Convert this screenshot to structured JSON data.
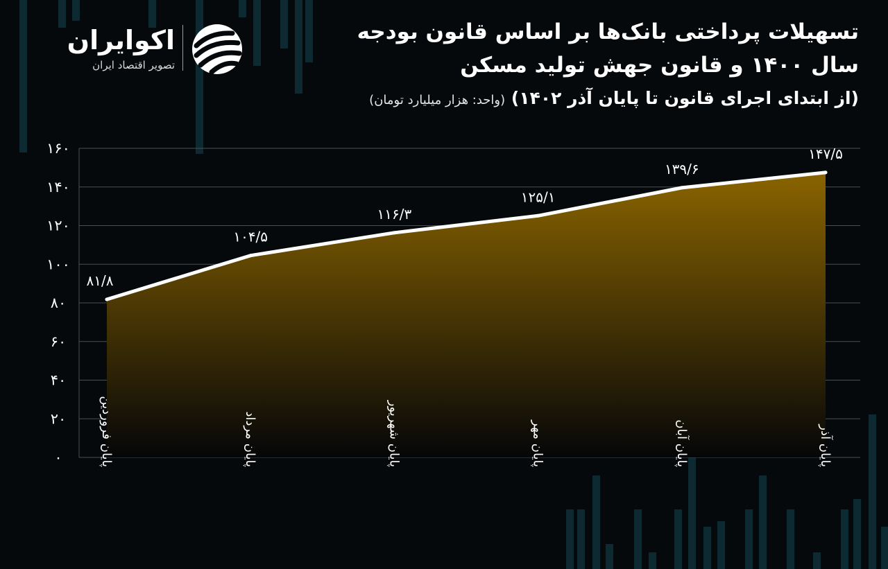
{
  "brand": {
    "name": "اکوایران",
    "tagline": "تصویر اقتصاد ایران"
  },
  "header": {
    "title_line1": "تسهیلات پرداختی بانک‌ها بر اساس قانون بودجه",
    "title_line2": "سال ۱۴۰۰ و قانون جهش تولید مسکن",
    "subtitle": "(از ابتدای اجرای قانون تا پایان آذر ۱۴۰۲)",
    "unit": "(واحد: هزار میلیارد تومان)"
  },
  "colors": {
    "background": "#05090b",
    "line": "#ffffff",
    "fill_top": "#8a6400",
    "fill_bottom": "#050608",
    "grid": "#4a4f52",
    "bg_bars": "#0d2a33"
  },
  "chart_data": {
    "type": "area",
    "categories": [
      "پایان فروردین",
      "پایان مرداد",
      "پایان شهریور",
      "پایان مهر",
      "پایان آبان",
      "پایان آذر"
    ],
    "values": [
      81.8,
      104.5,
      116.3,
      125.1,
      139.6,
      147.5
    ],
    "value_labels": [
      "۸۱/۸",
      "۱۰۴/۵",
      "۱۱۶/۳",
      "۱۲۵/۱",
      "۱۳۹/۶",
      "۱۴۷/۵"
    ],
    "ylim": [
      0,
      160
    ],
    "yticks": [
      0,
      20,
      40,
      60,
      80,
      100,
      120,
      140,
      160
    ],
    "ytick_labels": [
      "۰",
      "۲۰",
      "۴۰",
      "۶۰",
      "۸۰",
      "۱۰۰",
      "۱۲۰",
      "۱۴۰",
      "۱۶۰"
    ],
    "grid": true,
    "legend": "none"
  }
}
